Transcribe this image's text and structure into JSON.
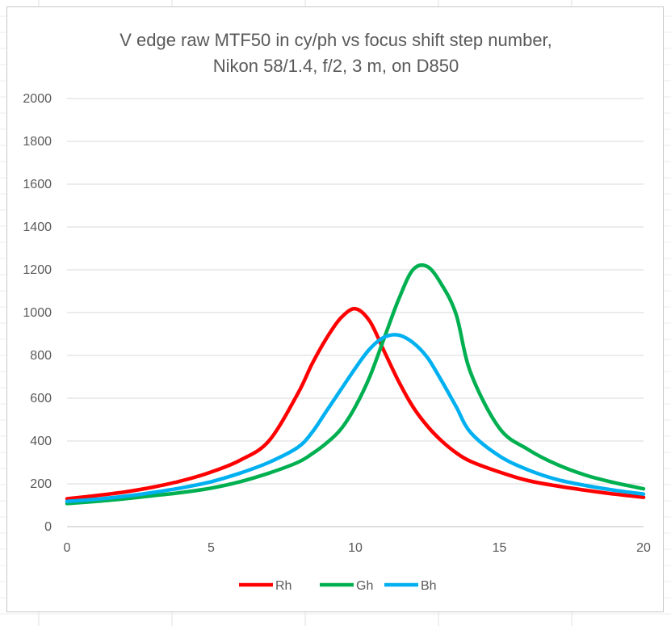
{
  "chart_data": {
    "type": "line",
    "title_lines": [
      "V edge raw MTF50 in cy/ph vs focus shift step number,",
      "Nikon 58/1.4, f/2, 3 m, on D850"
    ],
    "xlabel": "",
    "ylabel": "",
    "xlim": [
      0,
      20
    ],
    "ylim": [
      0,
      2000
    ],
    "x_ticks": [
      0,
      5,
      10,
      15,
      20
    ],
    "y_ticks": [
      0,
      200,
      400,
      600,
      800,
      1000,
      1200,
      1400,
      1600,
      1800,
      2000
    ],
    "grid": true,
    "legend_position": "bottom",
    "x": [
      0,
      1,
      2,
      3,
      4,
      5,
      6,
      7,
      8,
      8.5,
      9,
      9.5,
      10,
      10.5,
      11,
      11.5,
      12,
      12.5,
      13,
      13.5,
      14,
      15,
      16,
      17,
      18,
      19,
      20
    ],
    "series": [
      {
        "name": "Rh",
        "color": "#ff0000",
        "values": [
          130,
          145,
          162,
          185,
          215,
          255,
          310,
          400,
          620,
          760,
          880,
          975,
          1018,
          960,
          820,
          680,
          560,
          470,
          400,
          345,
          305,
          255,
          215,
          190,
          170,
          152,
          137
        ]
      },
      {
        "name": "Gh",
        "color": "#00b050",
        "values": [
          108,
          118,
          130,
          145,
          160,
          180,
          210,
          250,
          300,
          340,
          390,
          455,
          560,
          700,
          880,
          1060,
          1200,
          1215,
          1130,
          990,
          720,
          460,
          360,
          290,
          240,
          205,
          177
        ]
      },
      {
        "name": "Bh",
        "color": "#00b0f0",
        "values": [
          118,
          128,
          142,
          160,
          182,
          210,
          250,
          300,
          370,
          440,
          540,
          640,
          740,
          830,
          885,
          895,
          860,
          790,
          680,
          560,
          440,
          330,
          265,
          220,
          192,
          170,
          152
        ]
      }
    ]
  }
}
